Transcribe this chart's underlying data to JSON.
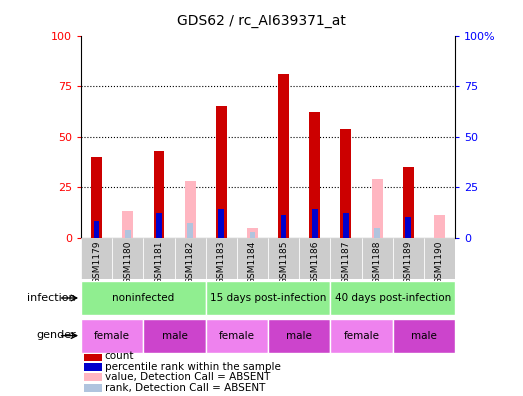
{
  "title": "GDS62 / rc_AI639371_at",
  "samples": [
    "GSM1179",
    "GSM1180",
    "GSM1181",
    "GSM1182",
    "GSM1183",
    "GSM1184",
    "GSM1185",
    "GSM1186",
    "GSM1187",
    "GSM1188",
    "GSM1189",
    "GSM1190"
  ],
  "count_values": [
    40,
    0,
    43,
    0,
    65,
    0,
    81,
    62,
    54,
    0,
    35,
    0
  ],
  "rank_values": [
    8,
    0,
    12,
    0,
    14,
    0,
    11,
    14,
    12,
    0,
    10,
    0
  ],
  "absent_value_values": [
    0,
    13,
    0,
    28,
    0,
    5,
    0,
    0,
    0,
    29,
    0,
    11
  ],
  "absent_rank_values": [
    0,
    4,
    0,
    7,
    0,
    3,
    0,
    0,
    0,
    5,
    0,
    0
  ],
  "infection_groups": [
    {
      "label": "noninfected",
      "start": 0,
      "end": 4
    },
    {
      "label": "15 days post-infection",
      "start": 4,
      "end": 8
    },
    {
      "label": "40 days post-infection",
      "start": 8,
      "end": 12
    }
  ],
  "gender_groups": [
    {
      "label": "female",
      "start": 0,
      "end": 2
    },
    {
      "label": "male",
      "start": 2,
      "end": 4
    },
    {
      "label": "female",
      "start": 4,
      "end": 6
    },
    {
      "label": "male",
      "start": 6,
      "end": 8
    },
    {
      "label": "female",
      "start": 8,
      "end": 10
    },
    {
      "label": "male",
      "start": 10,
      "end": 12
    }
  ],
  "ylim": [
    0,
    100
  ],
  "yticks": [
    0,
    25,
    50,
    75,
    100
  ],
  "bar_width": 0.35,
  "rank_bar_width": 0.18,
  "count_color": "#CC0000",
  "rank_color": "#0000CC",
  "absent_value_color": "#FFB6C1",
  "absent_rank_color": "#B0C4DE",
  "infection_color": "#90EE90",
  "female_color": "#EE82EE",
  "male_color": "#CC44CC",
  "infection_label": "infection",
  "gender_label": "gender",
  "chart_bg": "#FFFFFF",
  "xtick_bg": "#CCCCCC",
  "legend_items": [
    {
      "label": "count",
      "color": "#CC0000"
    },
    {
      "label": "percentile rank within the sample",
      "color": "#0000CC"
    },
    {
      "label": "value, Detection Call = ABSENT",
      "color": "#FFB6C1"
    },
    {
      "label": "rank, Detection Call = ABSENT",
      "color": "#B0C4DE"
    }
  ]
}
